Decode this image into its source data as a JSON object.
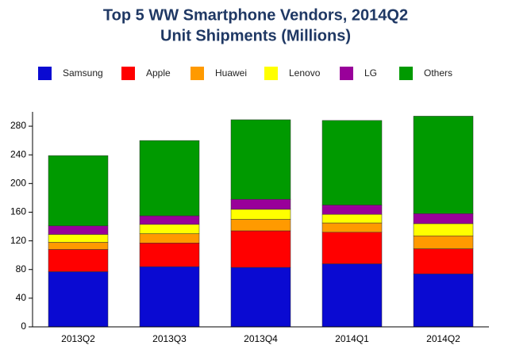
{
  "chart_data": {
    "type": "stacked-bar",
    "title": "Top 5 WW Smartphone Vendors, 2014Q2",
    "subtitle": "Unit Shipments (Millions)",
    "categories": [
      "2013Q2",
      "2013Q3",
      "2013Q4",
      "2014Q1",
      "2014Q2"
    ],
    "series": [
      {
        "name": "Samsung",
        "color": "#0a0ad2",
        "values": [
          77,
          84,
          83,
          88,
          74
        ]
      },
      {
        "name": "Apple",
        "color": "#ff0000",
        "values": [
          31,
          33,
          51,
          44,
          35
        ]
      },
      {
        "name": "Huawei",
        "color": "#ff9a00",
        "values": [
          10,
          13,
          16,
          13,
          18
        ]
      },
      {
        "name": "Lenovo",
        "color": "#ffff00",
        "values": [
          11,
          13,
          14,
          12,
          17
        ]
      },
      {
        "name": "LG",
        "color": "#99009a",
        "values": [
          12,
          12,
          14,
          13,
          14
        ]
      },
      {
        "name": "Others",
        "color": "#009a00",
        "values": [
          98,
          105,
          111,
          118,
          136
        ]
      }
    ],
    "ylim": [
      0,
      300
    ],
    "yticks": [
      0,
      40,
      80,
      120,
      160,
      200,
      240,
      280
    ]
  }
}
